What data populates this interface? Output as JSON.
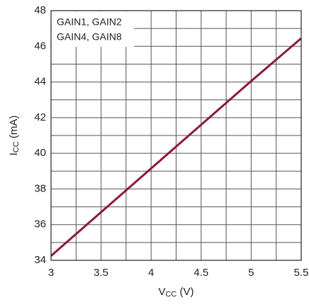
{
  "chart_data": {
    "type": "line",
    "ylabel": [
      "I",
      "CC",
      " (mA)"
    ],
    "xlabel": [
      "V",
      "CC",
      " (V)"
    ],
    "legend_lines": [
      "GAIN1, GAIN2",
      "GAIN4, GAIN8"
    ],
    "x": [
      3,
      3.5,
      4,
      4.5,
      5,
      5.5
    ],
    "series": [
      {
        "color": "#8b1a3a",
        "values": [
          34.25,
          36.7,
          39.15,
          41.6,
          44.05,
          46.45
        ]
      }
    ],
    "xlim": [
      3,
      5.5
    ],
    "xticks": [
      3,
      3.5,
      4,
      4.5,
      5,
      5.5
    ],
    "x_minor_ticks": [
      3.25,
      3.75,
      4.25,
      4.75,
      5.25
    ],
    "ylim": [
      34,
      48
    ],
    "yticks": [
      34,
      36,
      38,
      40,
      42,
      44,
      46,
      48
    ],
    "y_minor_ticks": [
      35,
      37,
      39,
      41,
      43,
      45,
      47
    ],
    "grid": true
  }
}
